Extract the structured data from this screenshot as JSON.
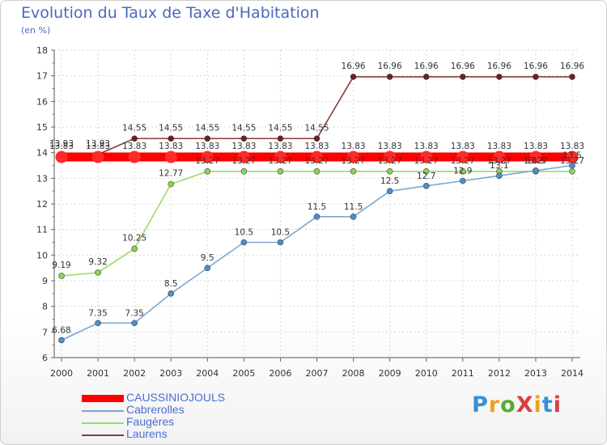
{
  "header": {
    "title": "Evolution du Taux de Taxe d'Habitation",
    "subtitle": "(en %)"
  },
  "chart_data": {
    "type": "line",
    "x": [
      2000,
      2001,
      2002,
      2003,
      2004,
      2005,
      2006,
      2007,
      2008,
      2009,
      2010,
      2011,
      2012,
      2013,
      2014
    ],
    "ylim": [
      6,
      18
    ],
    "yticks": [
      6,
      7,
      8,
      9,
      10,
      11,
      12,
      13,
      14,
      15,
      16,
      17,
      18
    ],
    "grid": true,
    "legend_position": "bottom-left",
    "series": [
      {
        "name": "CAUSSINIOJOULS",
        "color": "#ff0000",
        "values": [
          13.83,
          13.83,
          13.83,
          13.83,
          13.83,
          13.83,
          13.83,
          13.83,
          13.83,
          13.83,
          13.83,
          13.83,
          13.83,
          13.83,
          13.83
        ],
        "labels": [
          "13.83",
          "13.83",
          "13.83",
          "13.83",
          "13.83",
          "13.83",
          "13.83",
          "13.83",
          "13.83",
          "13.83",
          "13.83",
          "13.83",
          "13.83",
          "13.83",
          "13.83"
        ]
      },
      {
        "name": "Cabrerolles",
        "color": "#7aa7d6",
        "values": [
          6.68,
          7.35,
          7.35,
          8.5,
          9.5,
          10.5,
          10.5,
          11.5,
          11.5,
          12.5,
          12.7,
          12.9,
          13.1,
          13.3,
          13.5
        ],
        "labels": [
          "6.68",
          "7.35",
          "7.35",
          "8.5",
          "9.5",
          "10.5",
          "10.5",
          "11.5",
          "11.5",
          "12.5",
          "12.7",
          "12.9",
          "13.1",
          "13.3",
          "13.5"
        ]
      },
      {
        "name": "Faugères",
        "color": "#99dd66",
        "values": [
          9.19,
          9.32,
          10.25,
          12.77,
          13.27,
          13.27,
          13.27,
          13.27,
          13.27,
          13.27,
          13.27,
          13.27,
          13.27,
          13.27,
          13.27
        ],
        "labels": [
          "9.19",
          "9.32",
          "10.25",
          "12.77",
          "13.27",
          "13.27",
          "13.27",
          "13.27",
          "13.27",
          "13.27",
          "13.27",
          "13.27",
          "13.27",
          "13.27",
          "13.27"
        ]
      },
      {
        "name": "Laurens",
        "color": "#8b3a3a",
        "values": [
          13.93,
          13.93,
          14.55,
          14.55,
          14.55,
          14.55,
          14.55,
          14.55,
          16.96,
          16.96,
          16.96,
          16.96,
          16.96,
          16.96,
          16.96
        ],
        "labels": [
          "13.93",
          "13.93",
          "14.55",
          "14.55",
          "14.55",
          "14.55",
          "14.55",
          "14.55",
          "16.96",
          "16.96",
          "16.96",
          "16.96",
          "16.96",
          "16.96",
          "16.96"
        ]
      }
    ]
  },
  "logo": {
    "text": "ProXiti",
    "colors": [
      "#3a8fd6",
      "#f0a020",
      "#55aa33",
      "#d94040",
      "#f0a020",
      "#3a8fd6",
      "#d94040"
    ]
  }
}
